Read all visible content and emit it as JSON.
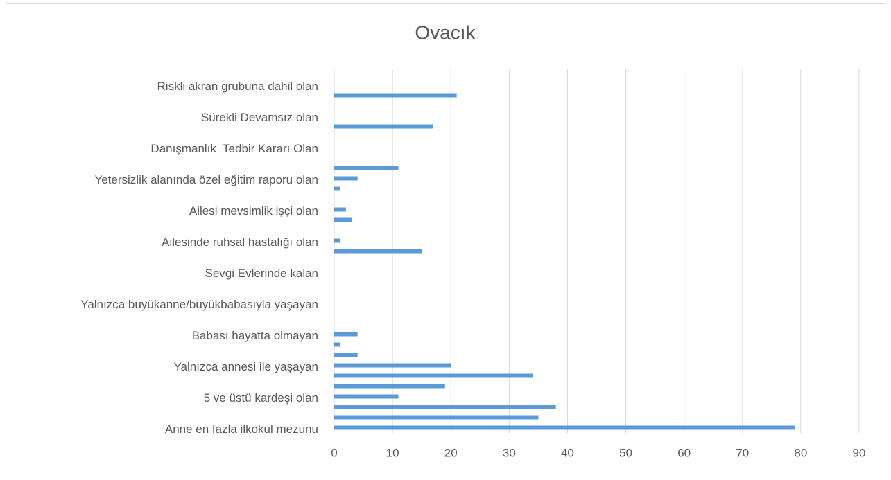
{
  "chart_data": {
    "type": "bar",
    "orientation": "horizontal",
    "title": "Ovacık",
    "categories": [
      "Anne en fazla ilkokul mezunu",
      null,
      null,
      "5 ve üstü kardeşi olan",
      null,
      null,
      "Yalnızca annesi ile yaşayan",
      null,
      null,
      "Babası hayatta olmayan",
      null,
      null,
      "Yalnızca büyükanne/büyükbabasıyla yaşayan",
      null,
      null,
      "Sevgi Evlerinde kalan",
      null,
      null,
      "Ailesinde ruhsal hastalığı olan",
      null,
      null,
      "Ailesi mevsimlik işçi olan",
      null,
      null,
      "Yetersizlik alanında özel eğitim raporu olan",
      null,
      null,
      "Danışmanlık  Tedbir Kararı Olan",
      null,
      null,
      "Sürekli Devamsız olan",
      null,
      null,
      "Riskli akran grubuna dahil olan",
      null
    ],
    "values": [
      79,
      35,
      38,
      11,
      19,
      34,
      20,
      4,
      1,
      4,
      0,
      0,
      0,
      0,
      0,
      0,
      0,
      15,
      1,
      0,
      3,
      2,
      0,
      1,
      4,
      11,
      0,
      0,
      0,
      17,
      0,
      0,
      21,
      0,
      0
    ],
    "color": "#5b9bd5",
    "xlim": [
      0,
      90
    ],
    "xticks": [
      0,
      10,
      20,
      30,
      40,
      50,
      60,
      70,
      80,
      90
    ],
    "grid": true
  }
}
